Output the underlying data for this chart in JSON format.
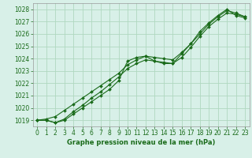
{
  "title": "Graphe pression niveau de la mer (hPa)",
  "background_color": "#d8f0e8",
  "plot_bg_color": "#d8f0e8",
  "grid_color": "#b0d8c0",
  "line_color": "#1a6b1a",
  "xlim": [
    -0.5,
    23.5
  ],
  "ylim": [
    1018.5,
    1028.5
  ],
  "yticks": [
    1019,
    1020,
    1021,
    1022,
    1023,
    1024,
    1025,
    1026,
    1027,
    1028
  ],
  "xticks": [
    0,
    1,
    2,
    3,
    4,
    5,
    6,
    7,
    8,
    9,
    10,
    11,
    12,
    13,
    14,
    15,
    16,
    17,
    18,
    19,
    20,
    21,
    22,
    23
  ],
  "series": [
    [
      1019.0,
      1019.0,
      1018.8,
      1019.0,
      1019.5,
      1020.0,
      1020.5,
      1021.0,
      1021.5,
      1022.2,
      1023.8,
      1024.1,
      1024.2,
      1023.8,
      1023.6,
      1023.6,
      1024.4,
      1025.2,
      1026.2,
      1026.9,
      1027.5,
      1028.0,
      1027.5,
      1027.3
    ],
    [
      1019.0,
      1019.0,
      1018.8,
      1019.1,
      1019.7,
      1020.2,
      1020.8,
      1021.3,
      1021.9,
      1022.5,
      1023.2,
      1023.6,
      1023.9,
      1023.8,
      1023.7,
      1023.6,
      1024.1,
      1024.9,
      1025.8,
      1026.6,
      1027.2,
      1027.7,
      1027.6,
      1027.4
    ],
    [
      1019.0,
      1019.1,
      1019.3,
      1019.8,
      1020.3,
      1020.8,
      1021.3,
      1021.8,
      1022.3,
      1022.8,
      1023.5,
      1023.9,
      1024.2,
      1024.1,
      1024.0,
      1023.9,
      1024.5,
      1025.2,
      1026.0,
      1026.8,
      1027.4,
      1027.9,
      1027.7,
      1027.4
    ]
  ],
  "tick_fontsize": 5.5,
  "xlabel_fontsize": 6.0,
  "tick_color": "#1a6b1a",
  "marker_size": 2.0,
  "line_width": 0.8
}
